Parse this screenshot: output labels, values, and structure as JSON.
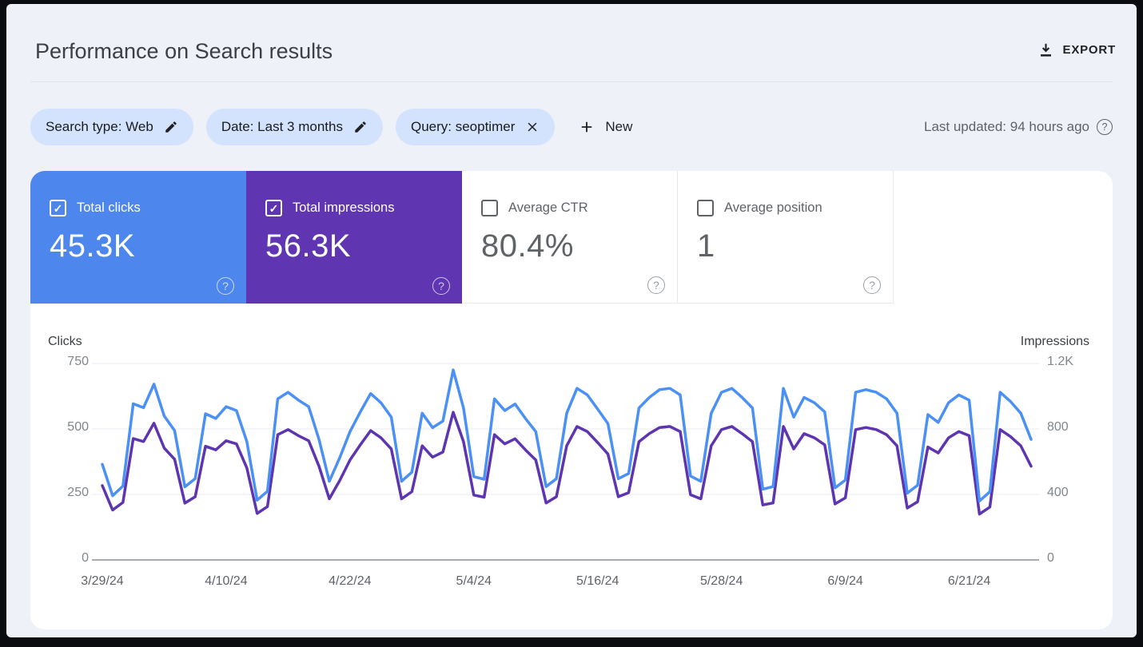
{
  "header": {
    "title": "Performance on Search results",
    "export_label": "EXPORT",
    "export_icon": "download-icon"
  },
  "filters": {
    "chips": [
      {
        "label": "Search type: Web",
        "icon": "edit-pencil-icon"
      },
      {
        "label": "Date: Last 3 months",
        "icon": "edit-pencil-icon"
      },
      {
        "label": "Query: seoptimer",
        "icon": "close-icon"
      }
    ],
    "new_label": "New",
    "new_icon": "plus-icon",
    "last_updated": "Last updated: 94 hours ago",
    "last_updated_icon": "help-circle-icon"
  },
  "metrics": {
    "cards": [
      {
        "label": "Total clicks",
        "value": "45.3K",
        "checked": true,
        "bg": "#4d87ee",
        "fg": "#ffffff"
      },
      {
        "label": "Total impressions",
        "value": "56.3K",
        "checked": true,
        "bg": "#5f35b1",
        "fg": "#ffffff"
      },
      {
        "label": "Average CTR",
        "value": "80.4%",
        "checked": false,
        "bg": "",
        "fg": "#5f6368"
      },
      {
        "label": "Average position",
        "value": "1",
        "checked": false,
        "bg": "",
        "fg": "#5f6368"
      }
    ],
    "help_icon": "help-circle-icon"
  },
  "chart_data": {
    "type": "line",
    "grid": true,
    "legend_position": "none",
    "left_axis": {
      "label": "Clicks",
      "max": 750,
      "ticks": [
        0,
        250,
        500,
        750
      ],
      "tick_labels": [
        "0",
        "250",
        "500",
        "750"
      ]
    },
    "right_axis": {
      "label": "Impressions",
      "max": 1200,
      "ticks": [
        0,
        400,
        800,
        1200
      ],
      "tick_labels": [
        "0",
        "400",
        "800",
        "1.2K"
      ]
    },
    "x_ticks": [
      {
        "index": 0,
        "label": "3/29/24"
      },
      {
        "index": 12,
        "label": "4/10/24"
      },
      {
        "index": 24,
        "label": "4/22/24"
      },
      {
        "index": 36,
        "label": "5/4/24"
      },
      {
        "index": 48,
        "label": "5/16/24"
      },
      {
        "index": 60,
        "label": "5/28/24"
      },
      {
        "index": 72,
        "label": "6/9/24"
      },
      {
        "index": 84,
        "label": "6/21/24"
      }
    ],
    "x": [
      "3/29/24",
      "3/30/24",
      "3/31/24",
      "4/1/24",
      "4/2/24",
      "4/3/24",
      "4/4/24",
      "4/5/24",
      "4/6/24",
      "4/7/24",
      "4/8/24",
      "4/9/24",
      "4/10/24",
      "4/11/24",
      "4/12/24",
      "4/13/24",
      "4/14/24",
      "4/15/24",
      "4/16/24",
      "4/17/24",
      "4/18/24",
      "4/19/24",
      "4/20/24",
      "4/21/24",
      "4/22/24",
      "4/23/24",
      "4/24/24",
      "4/25/24",
      "4/26/24",
      "4/27/24",
      "4/28/24",
      "4/29/24",
      "4/30/24",
      "5/1/24",
      "5/2/24",
      "5/3/24",
      "5/4/24",
      "5/5/24",
      "5/6/24",
      "5/7/24",
      "5/8/24",
      "5/9/24",
      "5/10/24",
      "5/11/24",
      "5/12/24",
      "5/13/24",
      "5/14/24",
      "5/15/24",
      "5/16/24",
      "5/17/24",
      "5/18/24",
      "5/19/24",
      "5/20/24",
      "5/21/24",
      "5/22/24",
      "5/23/24",
      "5/24/24",
      "5/25/24",
      "5/26/24",
      "5/27/24",
      "5/28/24",
      "5/29/24",
      "5/30/24",
      "5/31/24",
      "6/1/24",
      "6/2/24",
      "6/3/24",
      "6/4/24",
      "6/5/24",
      "6/6/24",
      "6/7/24",
      "6/8/24",
      "6/9/24",
      "6/10/24",
      "6/11/24",
      "6/12/24",
      "6/13/24",
      "6/14/24",
      "6/15/24",
      "6/16/24",
      "6/17/24",
      "6/18/24",
      "6/19/24",
      "6/20/24",
      "6/21/24",
      "6/22/24",
      "6/23/24",
      "6/24/24",
      "6/25/24",
      "6/26/24",
      "6/27/24"
    ],
    "series": [
      {
        "name": "Clicks",
        "axis": "left",
        "color": "#4b90f5",
        "values": [
          365,
          245,
          282,
          596,
          581,
          671,
          549,
          494,
          279,
          310,
          558,
          540,
          585,
          570,
          452,
          228,
          262,
          615,
          640,
          610,
          585,
          460,
          300,
          390,
          490,
          565,
          635,
          600,
          545,
          300,
          335,
          560,
          505,
          530,
          725,
          580,
          318,
          308,
          615,
          570,
          595,
          540,
          490,
          280,
          310,
          560,
          655,
          630,
          576,
          520,
          310,
          330,
          580,
          620,
          650,
          655,
          630,
          320,
          300,
          560,
          640,
          655,
          620,
          580,
          270,
          280,
          655,
          545,
          620,
          600,
          565,
          275,
          305,
          640,
          650,
          640,
          615,
          560,
          255,
          285,
          555,
          525,
          600,
          630,
          610,
          225,
          260,
          640,
          605,
          560,
          460
        ]
      },
      {
        "name": "Impressions",
        "axis": "right",
        "color": "#5e35b1",
        "values": [
          454,
          305,
          351,
          741,
          723,
          835,
          683,
          615,
          347,
          386,
          694,
          672,
          728,
          709,
          562,
          284,
          326,
          765,
          796,
          759,
          728,
          572,
          373,
          485,
          610,
          703,
          790,
          746,
          678,
          373,
          417,
          697,
          628,
          659,
          902,
          722,
          396,
          383,
          765,
          709,
          740,
          672,
          610,
          348,
          386,
          697,
          815,
          784,
          717,
          647,
          386,
          411,
          722,
          771,
          809,
          815,
          784,
          398,
          373,
          697,
          796,
          815,
          771,
          722,
          336,
          348,
          815,
          678,
          771,
          746,
          703,
          342,
          379,
          796,
          809,
          796,
          765,
          697,
          317,
          355,
          690,
          653,
          746,
          784,
          759,
          280,
          323,
          796,
          753,
          697,
          572
        ]
      }
    ],
    "colors": {
      "gridline": "#e9ebf0",
      "axis_line": "#8a8f94",
      "tick_text": "#80868b"
    }
  }
}
